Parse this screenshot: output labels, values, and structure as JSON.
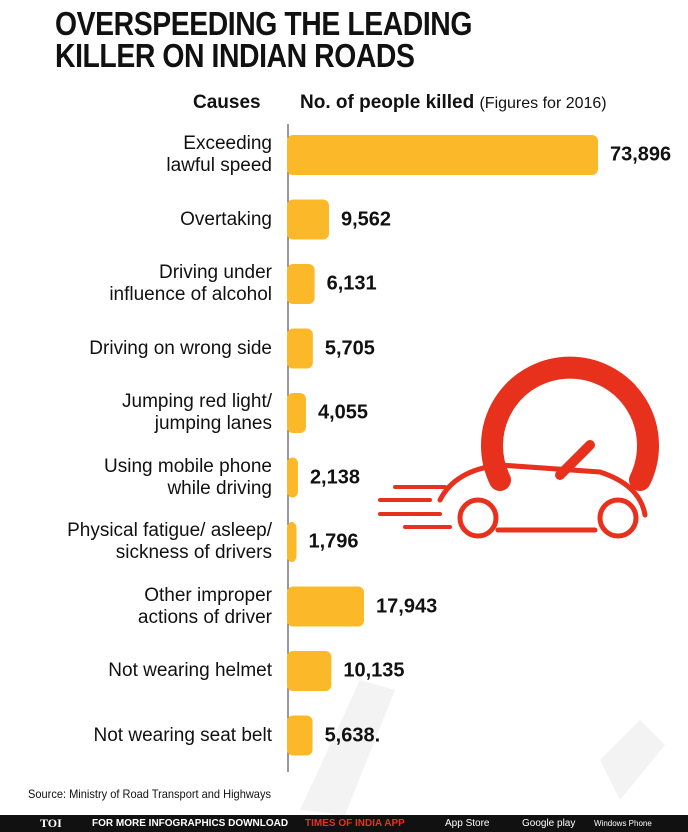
{
  "chart_data": {
    "type": "bar",
    "orientation": "horizontal",
    "title_lines": [
      "OVERSPEEDING THE LEADING",
      "KILLER ON INDIAN ROADS"
    ],
    "category_header": "Causes",
    "value_header": "No. of people killed",
    "value_note": "(Figures for 2016)",
    "categories": [
      "Exceeding\nlawful speed",
      "Overtaking",
      "Driving under\ninfluence of alcohol",
      "Driving on wrong side",
      "Jumping red light/\njumping lanes",
      "Using mobile phone\nwhile driving",
      "Physical fatigue/ asleep/\nsickness of drivers",
      "Other improper\nactions of driver",
      "Not wearing helmet",
      "Not wearing seat belt"
    ],
    "values": [
      73896,
      9562,
      6131,
      5705,
      4055,
      2138,
      1796,
      17943,
      10135,
      5638
    ],
    "value_labels": [
      "73,896",
      "9,562",
      "6,131",
      "5,705",
      "4,055",
      "2,138",
      "1,796",
      "17,943",
      "10,135",
      "5,638."
    ],
    "color": "#fbb829",
    "source": "Source: Ministry of Road Transport and Highways"
  },
  "footer": {
    "brand": "TOI",
    "text": "FOR MORE INFOGRAPHICS DOWNLOAD",
    "app": "TIMES OF INDIA APP",
    "stores": [
      "App Store",
      "Google play",
      "Windows Phone"
    ]
  }
}
